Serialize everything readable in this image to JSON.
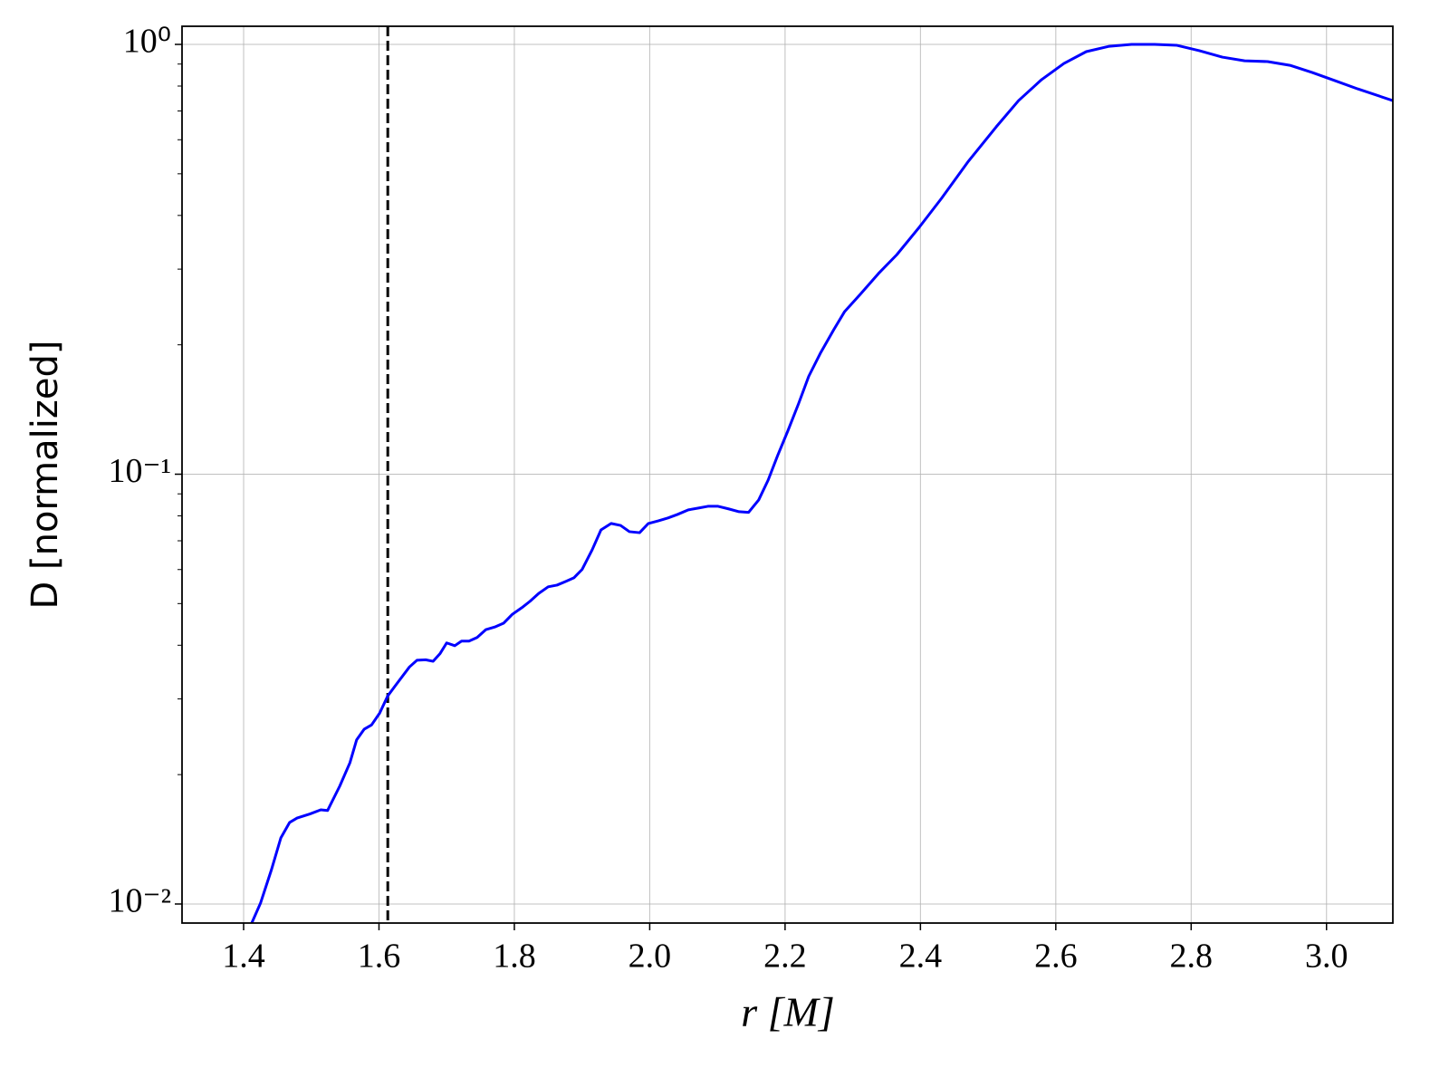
{
  "chart_data": {
    "type": "line",
    "xlabel": "r [M]",
    "ylabel": "D [normalized]",
    "x": [
      1.412,
      1.425,
      1.441,
      1.455,
      1.468,
      1.479,
      1.498,
      1.514,
      1.524,
      1.542,
      1.557,
      1.567,
      1.578,
      1.589,
      1.601,
      1.613,
      1.626,
      1.645,
      1.656,
      1.669,
      1.68,
      1.69,
      1.7,
      1.712,
      1.722,
      1.733,
      1.745,
      1.758,
      1.771,
      1.784,
      1.797,
      1.811,
      1.823,
      1.836,
      1.85,
      1.863,
      1.876,
      1.888,
      1.9,
      1.915,
      1.928,
      1.943,
      1.957,
      1.97,
      1.985,
      1.998,
      2.013,
      2.027,
      2.041,
      2.057,
      2.072,
      2.086,
      2.101,
      2.117,
      2.132,
      2.146,
      2.161,
      2.175,
      2.189,
      2.204,
      2.22,
      2.235,
      2.252,
      2.272,
      2.288,
      2.311,
      2.338,
      2.365,
      2.398,
      2.431,
      2.471,
      2.512,
      2.545,
      2.579,
      2.612,
      2.645,
      2.679,
      2.712,
      2.746,
      2.779,
      2.812,
      2.846,
      2.879,
      2.913,
      2.946,
      2.979,
      3.013,
      3.046,
      3.098
    ],
    "series": [
      {
        "color": "#0000ff",
        "values": [
          0.00903,
          0.01005,
          0.012,
          0.01425,
          0.01548,
          0.01585,
          0.0162,
          0.01656,
          0.0165,
          0.0188,
          0.0213,
          0.0241,
          0.0255,
          0.0261,
          0.0278,
          0.0305,
          0.0325,
          0.0356,
          0.0369,
          0.037,
          0.0367,
          0.0382,
          0.0405,
          0.0399,
          0.0409,
          0.0409,
          0.0417,
          0.0435,
          0.0441,
          0.045,
          0.0472,
          0.0489,
          0.0506,
          0.0528,
          0.0547,
          0.0552,
          0.0563,
          0.0574,
          0.06,
          0.0667,
          0.0742,
          0.0768,
          0.076,
          0.0735,
          0.0731,
          0.0768,
          0.0779,
          0.0791,
          0.0806,
          0.0826,
          0.0834,
          0.0842,
          0.0842,
          0.083,
          0.0818,
          0.0815,
          0.0871,
          0.0969,
          0.1105,
          0.126,
          0.146,
          0.169,
          0.191,
          0.217,
          0.239,
          0.262,
          0.293,
          0.324,
          0.375,
          0.438,
          0.535,
          0.643,
          0.74,
          0.828,
          0.903,
          0.962,
          0.99,
          1.0,
          1.0,
          0.995,
          0.967,
          0.934,
          0.916,
          0.912,
          0.894,
          0.86,
          0.823,
          0.788,
          0.74
        ]
      }
    ],
    "vline": 1.613,
    "xlim": [
      1.309,
      3.098
    ],
    "ylim": [
      0.00903,
      1.102
    ],
    "yscale": "log",
    "xticks": [
      {
        "value": 1.4,
        "label": "1.4"
      },
      {
        "value": 1.6,
        "label": "1.6"
      },
      {
        "value": 1.8,
        "label": "1.8"
      },
      {
        "value": 2.0,
        "label": "2.0"
      },
      {
        "value": 2.2,
        "label": "2.2"
      },
      {
        "value": 2.4,
        "label": "2.4"
      },
      {
        "value": 2.6,
        "label": "2.6"
      },
      {
        "value": 2.8,
        "label": "2.8"
      },
      {
        "value": 3.0,
        "label": "3.0"
      }
    ],
    "yticks": [
      {
        "value": 0.01,
        "label": "10⁻²"
      },
      {
        "value": 0.1,
        "label": "10⁻¹"
      },
      {
        "value": 1,
        "label": "10⁰"
      }
    ],
    "yminorticks": [
      0.02,
      0.03,
      0.04,
      0.05,
      0.06,
      0.07,
      0.08,
      0.09,
      0.2,
      0.3,
      0.4,
      0.5,
      0.6,
      0.7,
      0.8,
      0.9
    ],
    "grid": true
  }
}
